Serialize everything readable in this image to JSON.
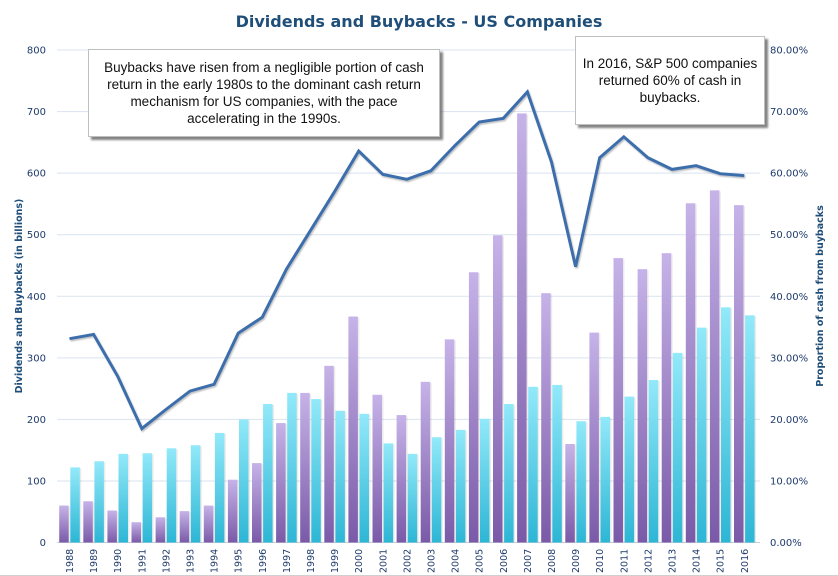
{
  "chart_data": {
    "type": "bar",
    "title": "Dividends and Buybacks - US Companies",
    "xlabel": "",
    "ylabel": "Dividends and Buybacks (in billions)",
    "y2label": "Proportion of cash from buybacks",
    "ylim": [
      0,
      800
    ],
    "y2lim": [
      0,
      0.8
    ],
    "yticks": [
      "0",
      "100",
      "200",
      "300",
      "400",
      "500",
      "600",
      "700",
      "800"
    ],
    "y2ticks": [
      "0.00%",
      "10.00%",
      "20.00%",
      "30.00%",
      "40.00%",
      "50.00%",
      "60.00%",
      "70.00%",
      "80.00%"
    ],
    "grid": true,
    "legend": "none",
    "categories": [
      "1988",
      "1989",
      "1990",
      "1991",
      "1992",
      "1993",
      "1994",
      "1995",
      "1996",
      "1997",
      "1998",
      "1999",
      "2000",
      "2001",
      "2002",
      "2003",
      "2004",
      "2005",
      "2006",
      "2007",
      "2008",
      "2009",
      "2010",
      "2011",
      "2012",
      "2013",
      "2014",
      "2015",
      "2016"
    ],
    "series": [
      {
        "name": "Buybacks",
        "type": "bar",
        "axis": "left",
        "color_top": "#c6b3e8",
        "color_bottom": "#7a5aa8",
        "values": [
          60,
          67,
          52,
          33,
          41,
          51,
          60,
          102,
          129,
          194,
          243,
          287,
          367,
          240,
          207,
          261,
          330,
          439,
          499,
          697,
          405,
          160,
          341,
          462,
          444,
          470,
          551,
          572,
          548
        ]
      },
      {
        "name": "Dividends",
        "type": "bar",
        "axis": "left",
        "color_top": "#92e9f9",
        "color_bottom": "#2db6d5",
        "values": [
          122,
          132,
          144,
          145,
          153,
          158,
          178,
          200,
          225,
          243,
          233,
          214,
          209,
          161,
          144,
          171,
          183,
          201,
          225,
          253,
          256,
          197,
          204,
          237,
          264,
          308,
          349,
          382,
          369
        ]
      },
      {
        "name": "Proportion of cash from buybacks",
        "type": "line",
        "axis": "right",
        "color": "#3d6eac",
        "values": [
          0.331,
          0.338,
          0.27,
          0.185,
          0.216,
          0.246,
          0.257,
          0.34,
          0.366,
          0.444,
          0.507,
          0.57,
          0.636,
          0.598,
          0.59,
          0.604,
          0.645,
          0.683,
          0.689,
          0.732,
          0.618,
          0.448,
          0.625,
          0.659,
          0.625,
          0.606,
          0.612,
          0.599,
          0.596
        ]
      }
    ],
    "annotations": [
      "Buybacks have risen from a negligible portion of cash return in the early 1980s to the dominant cash return mechanism for US companies, with the pace accelerating in the 1990s.",
      "In 2016, S&P 500 companies returned 60% of cash in buybacks."
    ]
  }
}
